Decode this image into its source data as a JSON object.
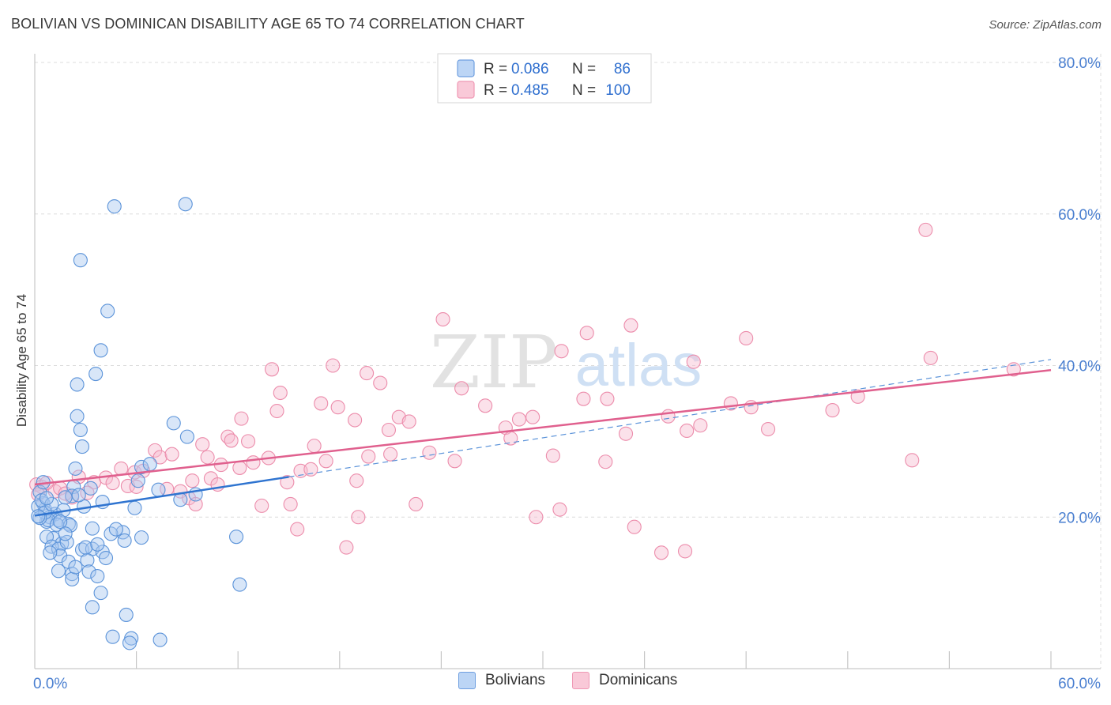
{
  "header": {
    "title": "BOLIVIAN VS DOMINICAN DISABILITY AGE 65 TO 74 CORRELATION CHART",
    "source": "Source: ZipAtlas.com"
  },
  "watermark": {
    "zip": "ZIP",
    "atlas": "atlas"
  },
  "colors": {
    "blue_fill": "#a8c8f0",
    "blue_stroke": "#5b93d9",
    "blue_line": "#2f74d0",
    "pink_fill": "#f7bcd0",
    "pink_stroke": "#ec8cab",
    "pink_line": "#e0608e",
    "axis_text": "#4a7fd0",
    "grid": "#dcdcdc"
  },
  "legend_top": {
    "rows": [
      {
        "r_label": "R = ",
        "r_value": "0.086",
        "n_label": "N = ",
        "n_value": "86"
      },
      {
        "r_label": "R = ",
        "r_value": "0.485",
        "n_label": "N = ",
        "n_value": "100"
      }
    ]
  },
  "legend_bottom": {
    "series": [
      "Bolivians",
      "Dominicans"
    ]
  },
  "chart_data": {
    "type": "scatter",
    "title": "BOLIVIAN VS DOMINICAN DISABILITY AGE 65 TO 74 CORRELATION CHART",
    "xlabel": "",
    "ylabel": "Disability Age 65 to 74",
    "xlim": [
      0,
      60
    ],
    "ylim": [
      0,
      80
    ],
    "x_tick_labels": [
      "0.0%",
      "60.0%"
    ],
    "y_ticks": [
      20,
      40,
      60,
      80
    ],
    "y_tick_labels": [
      "20.0%",
      "40.0%",
      "60.0%",
      "80.0%"
    ],
    "grid": true,
    "series": [
      {
        "name": "Bolivians",
        "r": 0.086,
        "n": 86,
        "trend": {
          "x": [
            0,
            15
          ],
          "y": [
            20.2,
            25.3
          ]
        },
        "trend_extension": {
          "x": [
            15,
            60
          ],
          "y": [
            25.3,
            40.8
          ]
        },
        "points": [
          [
            4.7,
            61.0
          ],
          [
            8.9,
            61.3
          ],
          [
            2.7,
            53.9
          ],
          [
            4.3,
            47.2
          ],
          [
            3.9,
            42.0
          ],
          [
            3.6,
            38.9
          ],
          [
            2.5,
            37.5
          ],
          [
            2.5,
            33.3
          ],
          [
            2.7,
            31.5
          ],
          [
            2.8,
            29.3
          ],
          [
            8.2,
            32.4
          ],
          [
            9.0,
            30.6
          ],
          [
            6.3,
            26.6
          ],
          [
            2.4,
            26.4
          ],
          [
            6.1,
            24.8
          ],
          [
            2.3,
            24.0
          ],
          [
            3.3,
            23.8
          ],
          [
            7.3,
            23.6
          ],
          [
            9.5,
            23.0
          ],
          [
            2.2,
            22.8
          ],
          [
            0.3,
            23.3
          ],
          [
            0.5,
            21.8
          ],
          [
            1.8,
            22.6
          ],
          [
            4.0,
            22.0
          ],
          [
            8.6,
            22.3
          ],
          [
            2.9,
            21.4
          ],
          [
            0.6,
            21.0
          ],
          [
            5.9,
            21.2
          ],
          [
            1.2,
            20.4
          ],
          [
            0.9,
            20.0
          ],
          [
            1.4,
            19.6
          ],
          [
            0.7,
            19.4
          ],
          [
            2.0,
            19.1
          ],
          [
            3.4,
            18.5
          ],
          [
            5.2,
            18.0
          ],
          [
            4.5,
            17.8
          ],
          [
            1.1,
            17.2
          ],
          [
            6.3,
            17.3
          ],
          [
            0.7,
            17.4
          ],
          [
            5.3,
            16.9
          ],
          [
            1.6,
            16.5
          ],
          [
            1.0,
            16.1
          ],
          [
            2.8,
            15.7
          ],
          [
            3.4,
            15.8
          ],
          [
            4.0,
            15.4
          ],
          [
            1.4,
            15.8
          ],
          [
            1.5,
            14.9
          ],
          [
            2.0,
            14.1
          ],
          [
            3.1,
            14.3
          ],
          [
            1.4,
            12.9
          ],
          [
            3.2,
            12.8
          ],
          [
            2.2,
            12.5
          ],
          [
            2.2,
            11.8
          ],
          [
            3.7,
            12.2
          ],
          [
            3.9,
            10.0
          ],
          [
            3.4,
            8.1
          ],
          [
            5.4,
            7.1
          ],
          [
            4.6,
            4.2
          ],
          [
            5.7,
            4.0
          ],
          [
            7.4,
            3.8
          ],
          [
            5.6,
            3.4
          ],
          [
            11.9,
            17.4
          ],
          [
            12.1,
            11.1
          ],
          [
            0.2,
            21.4
          ],
          [
            0.8,
            19.6
          ],
          [
            1.7,
            20.9
          ],
          [
            2.1,
            18.9
          ],
          [
            0.4,
            22.2
          ],
          [
            1.3,
            19.0
          ],
          [
            0.6,
            20.6
          ],
          [
            1.0,
            21.7
          ],
          [
            2.6,
            22.9
          ],
          [
            0.3,
            19.9
          ],
          [
            4.8,
            18.4
          ],
          [
            6.8,
            27.0
          ],
          [
            3.0,
            16.0
          ],
          [
            1.9,
            16.7
          ],
          [
            0.9,
            15.3
          ],
          [
            4.2,
            14.6
          ],
          [
            2.4,
            13.4
          ],
          [
            0.5,
            24.6
          ],
          [
            1.5,
            19.4
          ],
          [
            3.7,
            16.4
          ],
          [
            0.2,
            20.1
          ],
          [
            1.8,
            17.8
          ],
          [
            0.7,
            22.5
          ]
        ]
      },
      {
        "name": "Dominicans",
        "r": 0.485,
        "n": 100,
        "trend": {
          "x": [
            0,
            60
          ],
          "y": [
            24.3,
            39.4
          ]
        },
        "points": [
          [
            0.1,
            24.3
          ],
          [
            0.4,
            24.0
          ],
          [
            1.2,
            23.4
          ],
          [
            1.5,
            23.8
          ],
          [
            2.2,
            22.6
          ],
          [
            2.6,
            25.3
          ],
          [
            3.5,
            24.6
          ],
          [
            4.2,
            25.2
          ],
          [
            5.1,
            26.4
          ],
          [
            5.5,
            24.1
          ],
          [
            5.9,
            25.9
          ],
          [
            6.4,
            26.1
          ],
          [
            7.1,
            28.8
          ],
          [
            7.4,
            27.9
          ],
          [
            8.1,
            28.3
          ],
          [
            8.6,
            23.4
          ],
          [
            9.1,
            22.5
          ],
          [
            9.5,
            21.7
          ],
          [
            9.9,
            29.6
          ],
          [
            10.2,
            27.9
          ],
          [
            10.4,
            25.1
          ],
          [
            10.8,
            24.3
          ],
          [
            11.0,
            26.9
          ],
          [
            11.4,
            30.6
          ],
          [
            11.6,
            30.1
          ],
          [
            12.2,
            33.0
          ],
          [
            12.6,
            30.0
          ],
          [
            12.9,
            27.2
          ],
          [
            13.4,
            21.5
          ],
          [
            13.8,
            27.8
          ],
          [
            14.0,
            39.5
          ],
          [
            14.3,
            34.0
          ],
          [
            14.5,
            36.4
          ],
          [
            15.1,
            21.7
          ],
          [
            15.5,
            18.4
          ],
          [
            15.7,
            26.1
          ],
          [
            16.5,
            29.4
          ],
          [
            16.9,
            35.0
          ],
          [
            17.2,
            27.4
          ],
          [
            17.6,
            40.0
          ],
          [
            17.9,
            34.5
          ],
          [
            18.4,
            16.0
          ],
          [
            18.9,
            32.8
          ],
          [
            19.1,
            20.0
          ],
          [
            19.6,
            39.0
          ],
          [
            19.7,
            28.0
          ],
          [
            20.4,
            37.7
          ],
          [
            20.9,
            31.5
          ],
          [
            21.5,
            33.2
          ],
          [
            22.1,
            32.6
          ],
          [
            22.5,
            21.7
          ],
          [
            23.3,
            28.5
          ],
          [
            24.1,
            46.1
          ],
          [
            24.8,
            27.4
          ],
          [
            25.2,
            37.0
          ],
          [
            26.6,
            34.7
          ],
          [
            27.8,
            31.8
          ],
          [
            28.1,
            30.4
          ],
          [
            28.6,
            32.9
          ],
          [
            29.4,
            33.2
          ],
          [
            29.6,
            20.0
          ],
          [
            30.6,
            28.1
          ],
          [
            31.0,
            21.0
          ],
          [
            31.1,
            41.9
          ],
          [
            32.4,
            35.6
          ],
          [
            32.6,
            44.3
          ],
          [
            33.7,
            27.3
          ],
          [
            33.8,
            35.6
          ],
          [
            34.9,
            31.0
          ],
          [
            35.2,
            45.3
          ],
          [
            35.4,
            18.7
          ],
          [
            37.0,
            15.3
          ],
          [
            37.4,
            33.3
          ],
          [
            38.4,
            15.5
          ],
          [
            38.5,
            31.4
          ],
          [
            38.9,
            40.5
          ],
          [
            39.3,
            32.1
          ],
          [
            41.1,
            35.0
          ],
          [
            42.0,
            43.6
          ],
          [
            42.3,
            34.5
          ],
          [
            43.3,
            31.6
          ],
          [
            47.1,
            34.1
          ],
          [
            48.6,
            35.9
          ],
          [
            51.8,
            27.5
          ],
          [
            52.6,
            57.9
          ],
          [
            52.9,
            41.0
          ],
          [
            57.8,
            39.5
          ],
          [
            0.2,
            23.0
          ],
          [
            0.7,
            24.5
          ],
          [
            3.1,
            23.2
          ],
          [
            6.0,
            24.0
          ],
          [
            7.8,
            23.7
          ],
          [
            9.3,
            24.8
          ],
          [
            12.1,
            26.5
          ],
          [
            14.9,
            24.6
          ],
          [
            16.3,
            26.3
          ],
          [
            19.0,
            24.8
          ],
          [
            21.0,
            28.3
          ],
          [
            1.8,
            23.1
          ],
          [
            4.6,
            24.5
          ]
        ]
      }
    ]
  }
}
